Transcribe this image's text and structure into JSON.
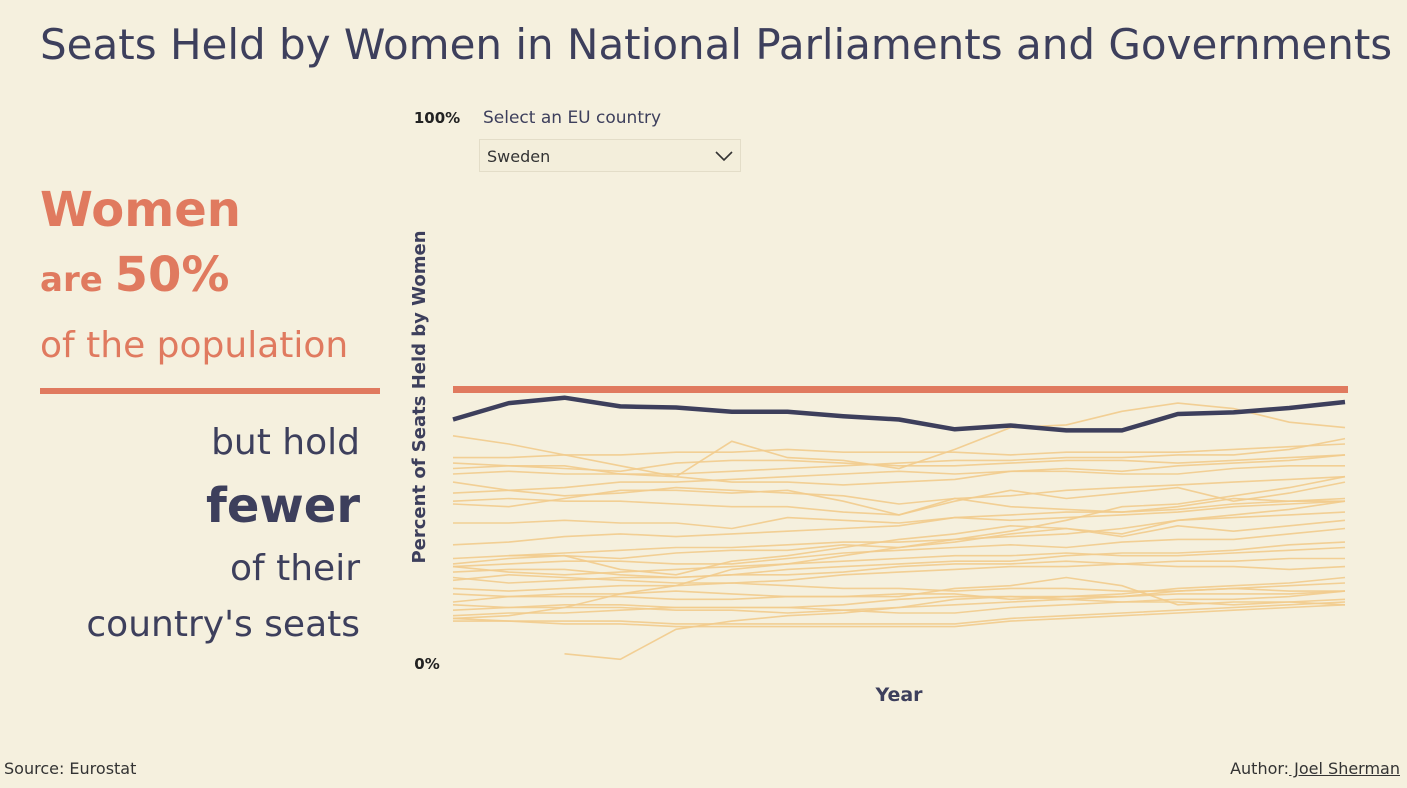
{
  "title": "Seats Held by Women in National Parliaments and Governments",
  "story": {
    "women": "Women",
    "are": "are ",
    "pct": "50%",
    "population": "of the population",
    "but_hold": "but hold",
    "fewer": "fewer",
    "of_their": "of their",
    "seats": "country's seats"
  },
  "filter": {
    "label": "Select an EU country",
    "selected": "Sweden",
    "icon": "chevron-down-icon"
  },
  "footer": {
    "source": "Source: Eurostat",
    "author_label": "Author:",
    "author_name": " Joel Sherman"
  },
  "colors": {
    "background": "#f5f0de",
    "highlight": "#3d3f5c",
    "reference": "#e07a5f",
    "others": "#f2cb8c",
    "text": "#3d3f5c"
  },
  "chart_data": {
    "type": "line",
    "title": "",
    "xlabel": "Year",
    "ylabel": "Percent of Seats Held by Women",
    "ylim": [
      0,
      100
    ],
    "y_tick_labels": [
      "0%",
      "100%"
    ],
    "x": [
      1,
      2,
      3,
      4,
      5,
      6,
      7,
      8,
      9,
      10,
      11,
      12,
      13,
      14,
      15,
      16,
      17
    ],
    "reference_line": {
      "value": 50,
      "name": "Women are 50% of the population"
    },
    "highlight": {
      "name": "Sweden",
      "values": [
        44.5,
        47.5,
        48.5,
        46.9,
        46.7,
        45.9,
        45.9,
        45.1,
        44.5,
        42.7,
        43.4,
        42.5,
        42.5,
        45.5,
        45.8,
        46.6,
        47.7
      ]
    },
    "others": [
      {
        "values": [
          41.5,
          40.0,
          38.0,
          36.0,
          34.0,
          40.5,
          37.5,
          37.0,
          35.5,
          39.0,
          43.0,
          43.5,
          46.0,
          47.5,
          46.5,
          44.0,
          43.0
        ]
      },
      {
        "values": [
          37.5,
          37.5,
          38.0,
          38.0,
          38.5,
          38.5,
          39.0,
          38.5,
          38.5,
          38.5,
          38.0,
          38.5,
          38.5,
          38.5,
          39.0,
          39.5,
          40.0
        ]
      },
      {
        "values": [
          36.5,
          36.0,
          36.0,
          34.5,
          34.5,
          35.0,
          35.5,
          36.0,
          36.5,
          37.0,
          37.0,
          37.5,
          37.5,
          38.0,
          38.0,
          39.0,
          41.0
        ]
      },
      {
        "values": [
          35.5,
          36.0,
          35.5,
          35.0,
          36.5,
          37.0,
          37.0,
          36.5,
          36.0,
          36.0,
          36.5,
          37.0,
          37.0,
          36.5,
          37.0,
          37.5,
          38.0
        ]
      },
      {
        "values": [
          34.5,
          35.0,
          34.5,
          34.5,
          34.0,
          33.0,
          33.0,
          32.5,
          33.0,
          33.5,
          35.0,
          35.5,
          35.0,
          36.0,
          36.5,
          37.0,
          38.0
        ]
      },
      {
        "values": [
          33.0,
          31.5,
          32.0,
          33.0,
          33.0,
          33.5,
          34.0,
          34.5,
          35.0,
          34.5,
          35.0,
          35.0,
          34.5,
          34.5,
          35.5,
          36.0,
          36.0
        ]
      },
      {
        "values": [
          31.0,
          31.5,
          30.5,
          31.0,
          32.0,
          31.5,
          31.0,
          30.5,
          29.0,
          30.0,
          30.5,
          31.5,
          32.0,
          32.5,
          33.0,
          33.5,
          34.0
        ]
      },
      {
        "values": [
          29.5,
          30.0,
          29.5,
          29.5,
          29.0,
          28.5,
          28.5,
          27.5,
          27.0,
          30.0,
          28.5,
          28.0,
          27.5,
          28.0,
          29.0,
          29.5,
          30.0
        ]
      },
      {
        "values": [
          29.0,
          28.5,
          30.0,
          31.5,
          31.5,
          31.0,
          31.5,
          29.5,
          27.0,
          29.5,
          31.5,
          30.0,
          31.0,
          32.0,
          29.5,
          31.0,
          33.0
        ]
      },
      {
        "values": [
          25.5,
          25.5,
          26.0,
          25.5,
          25.5,
          24.5,
          26.5,
          26.0,
          25.5,
          26.5,
          27.0,
          27.5,
          27.5,
          28.5,
          30.0,
          29.5,
          29.5
        ]
      },
      {
        "values": [
          21.5,
          22.0,
          23.0,
          23.5,
          23.0,
          23.5,
          24.0,
          24.5,
          25.0,
          26.5,
          26.0,
          26.5,
          27.0,
          27.5,
          28.5,
          29.0,
          29.5
        ]
      },
      {
        "values": [
          19.0,
          19.5,
          20.0,
          20.5,
          21.0,
          21.0,
          21.5,
          22.0,
          22.0,
          22.5,
          23.0,
          23.5,
          24.5,
          26.0,
          26.5,
          27.0,
          27.5
        ]
      },
      {
        "values": [
          18.0,
          19.0,
          19.5,
          19.0,
          20.0,
          20.5,
          20.5,
          21.5,
          21.0,
          22.0,
          23.5,
          24.5,
          23.0,
          25.0,
          24.0,
          25.0,
          26.0
        ]
      },
      {
        "values": [
          17.5,
          18.0,
          18.5,
          18.5,
          18.0,
          18.0,
          19.0,
          20.0,
          20.5,
          21.0,
          21.5,
          21.0,
          22.0,
          22.5,
          22.5,
          23.5,
          24.5
        ]
      },
      {
        "values": [
          17.5,
          16.5,
          16.0,
          16.5,
          17.0,
          17.5,
          18.0,
          18.5,
          19.0,
          19.5,
          19.5,
          20.0,
          19.5,
          19.5,
          20.0,
          20.5,
          21.0
        ]
      },
      {
        "values": [
          16.5,
          17.0,
          17.0,
          16.0,
          15.5,
          16.0,
          17.0,
          17.5,
          18.0,
          18.5,
          18.5,
          19.5,
          20.0,
          20.0,
          20.5,
          21.5,
          22.0
        ]
      },
      {
        "values": [
          15.5,
          14.5,
          15.0,
          15.5,
          15.5,
          16.0,
          16.0,
          16.5,
          17.5,
          18.0,
          18.0,
          18.5,
          18.0,
          18.5,
          18.5,
          19.0,
          19.0
        ]
      },
      {
        "values": [
          15.0,
          16.0,
          15.5,
          15.0,
          14.5,
          14.5,
          15.0,
          16.0,
          16.5,
          17.0,
          17.5,
          17.5,
          18.0,
          17.5,
          17.5,
          17.0,
          17.5
        ]
      },
      {
        "values": [
          13.5,
          13.0,
          13.5,
          14.0,
          14.0,
          14.5,
          14.0,
          13.5,
          13.5,
          13.0,
          13.5,
          13.5,
          13.0,
          13.0,
          13.5,
          14.0,
          14.5
        ]
      },
      {
        "values": [
          12.5,
          12.0,
          12.0,
          12.0,
          11.5,
          11.5,
          12.0,
          12.0,
          12.5,
          12.5,
          11.5,
          12.0,
          12.0,
          13.0,
          13.5,
          13.0,
          13.0
        ]
      },
      {
        "values": [
          11.0,
          12.0,
          12.5,
          12.5,
          13.0,
          12.5,
          12.0,
          12.0,
          12.0,
          13.5,
          14.0,
          15.5,
          14.0,
          10.5,
          11.0,
          11.0,
          10.5
        ]
      },
      {
        "values": [
          10.5,
          10.0,
          10.5,
          10.5,
          10.0,
          10.0,
          10.0,
          10.5,
          11.5,
          12.0,
          12.0,
          11.5,
          11.0,
          11.5,
          11.5,
          12.0,
          13.0
        ]
      },
      {
        "values": [
          9.5,
          10.0,
          10.0,
          10.0,
          9.5,
          9.5,
          9.0,
          9.5,
          10.0,
          10.5,
          11.0,
          11.5,
          12.0,
          12.5,
          12.5,
          12.5,
          13.0
        ]
      },
      {
        "values": [
          8.5,
          9.0,
          9.0,
          9.5,
          10.0,
          10.0,
          10.0,
          9.5,
          9.0,
          9.0,
          10.0,
          10.5,
          11.0,
          11.0,
          10.5,
          11.0,
          11.5
        ]
      },
      {
        "values": [
          8.0,
          7.5,
          7.5,
          7.5,
          7.0,
          7.0,
          7.0,
          7.0,
          7.0,
          7.0,
          8.0,
          8.5,
          9.0,
          9.5,
          10.0,
          10.5,
          11.0
        ]
      },
      {
        "values": [
          7.5,
          7.5,
          7.0,
          7.0,
          6.5,
          6.5,
          6.5,
          6.5,
          6.5,
          6.5,
          7.5,
          8.0,
          8.5,
          9.0,
          9.5,
          10.0,
          10.5
        ]
      },
      {
        "values": [
          8.0,
          8.5,
          10.0,
          12.5,
          14.0,
          17.0,
          18.0,
          19.5,
          21.0,
          22.5,
          24.0,
          26.0,
          28.5,
          29.0,
          30.5,
          32.0,
          34.0
        ]
      },
      {
        "values": [
          null,
          19.5,
          19.5,
          17.0,
          16.0,
          18.5,
          19.5,
          21.0,
          22.5,
          23.5,
          25.0,
          24.5,
          23.5,
          26.0,
          27.0,
          28.0,
          29.5
        ]
      },
      {
        "values": [
          null,
          null,
          1.5,
          0.5,
          6.0,
          7.5,
          8.5,
          9.0,
          10.0,
          11.5,
          12.0,
          12.0,
          12.5,
          13.5,
          14.0,
          14.5,
          15.5
        ]
      }
    ]
  }
}
